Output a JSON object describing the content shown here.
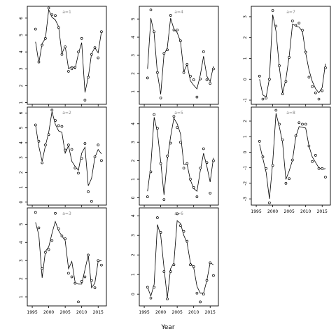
{
  "chart_data": {
    "type": "scatter",
    "xlabel": "Year",
    "xlim": [
      1993.5,
      2017.5
    ],
    "xticks": [
      1995,
      2000,
      2005,
      2010,
      2015
    ],
    "panels": [
      {
        "title": "a=1",
        "ylim": [
          0.9,
          6.7
        ],
        "yticks": [
          1,
          2,
          3,
          4,
          5,
          6
        ],
        "x": [
          1996,
          1997,
          1998,
          1999,
          2000,
          2001,
          2002,
          2003,
          2004,
          2005,
          2006,
          2007,
          2008,
          2009,
          2010,
          2011,
          2012,
          2013,
          2014,
          2015,
          2016
        ],
        "points": [
          5.35,
          3.4,
          4.4,
          4.8,
          6.6,
          6.2,
          6.15,
          5.45,
          3.85,
          4.3,
          2.85,
          3.0,
          3.1,
          4.0,
          4.8,
          1.15,
          2.5,
          3.85,
          4.25,
          3.65,
          5.2
        ],
        "fit": [
          4.6,
          3.35,
          4.5,
          4.8,
          6.5,
          6.05,
          5.9,
          5.5,
          3.9,
          4.35,
          3.0,
          3.15,
          3.0,
          3.9,
          4.55,
          1.6,
          2.5,
          3.9,
          4.25,
          3.95,
          5.2
        ]
      },
      {
        "title": "a=2",
        "ylim": [
          -0.2,
          6.4
        ],
        "yticks": [
          0,
          1,
          2,
          3,
          4,
          5,
          6
        ],
        "x": [
          1996,
          1997,
          1998,
          1999,
          2000,
          2001,
          2002,
          2003,
          2004,
          2005,
          2006,
          2007,
          2008,
          2009,
          2010,
          2011,
          2012,
          2013,
          2014,
          2015,
          2016
        ],
        "points": [
          5.2,
          4.1,
          2.65,
          3.85,
          4.55,
          6.2,
          5.5,
          5.15,
          5.1,
          3.5,
          3.85,
          3.55,
          2.3,
          1.95,
          2.95,
          3.95,
          0.7,
          0.05,
          3.05,
          3.85,
          2.8
        ],
        "fit": [
          5.2,
          3.75,
          2.75,
          3.8,
          4.7,
          6.1,
          5.25,
          4.8,
          4.7,
          3.3,
          3.8,
          2.75,
          2.4,
          2.15,
          3.3,
          3.7,
          1.1,
          1.6,
          3.0,
          3.55,
          3.25
        ]
      },
      {
        "title": "a=3",
        "ylim": [
          0.5,
          5.9
        ],
        "yticks": [
          1,
          2,
          3,
          4,
          5
        ],
        "x": [
          1996,
          1997,
          1998,
          1999,
          2000,
          2001,
          2002,
          2003,
          2004,
          2005,
          2006,
          2007,
          2008,
          2009,
          2010,
          2011,
          2012,
          2013,
          2014,
          2015,
          2016
        ],
        "points": [
          5.65,
          4.8,
          2.55,
          3.45,
          3.6,
          4.1,
          5.6,
          4.75,
          4.35,
          4.2,
          2.3,
          2.1,
          1.75,
          0.72,
          1.85,
          2.1,
          3.3,
          1.9,
          1.5,
          3.0,
          2.75
        ],
        "fit": [
          5.1,
          4.4,
          2.05,
          3.5,
          3.75,
          4.5,
          5.15,
          4.65,
          4.35,
          4.1,
          2.55,
          2.95,
          1.8,
          1.7,
          1.7,
          2.5,
          3.3,
          1.5,
          1.75,
          2.95,
          3.0
        ]
      },
      {
        "title": "a=4",
        "ylim": [
          0.3,
          5.7
        ],
        "yticks": [
          1,
          2,
          3,
          4,
          5
        ],
        "x": [
          1996,
          1997,
          1998,
          1999,
          2000,
          2001,
          2002,
          2003,
          2004,
          2005,
          2006,
          2007,
          2008,
          2009,
          2010,
          2011,
          2012,
          2013,
          2014,
          2015,
          2016
        ],
        "points": [
          1.75,
          5.5,
          4.3,
          2.05,
          0.65,
          3.1,
          3.3,
          5.2,
          4.4,
          4.4,
          3.8,
          2.05,
          2.5,
          1.85,
          1.65,
          0.7,
          1.7,
          3.2,
          1.65,
          1.45,
          2.25
        ],
        "fit": [
          2.25,
          5.05,
          4.2,
          2.0,
          0.85,
          3.05,
          3.4,
          5.05,
          4.45,
          4.25,
          3.75,
          2.1,
          2.5,
          1.6,
          1.35,
          1.15,
          1.9,
          2.95,
          1.85,
          1.55,
          2.4
        ]
      },
      {
        "title": "a=5",
        "ylim": [
          -0.4,
          4.9
        ],
        "yticks": [
          0,
          1,
          2,
          3,
          4
        ],
        "x": [
          1996,
          1997,
          1998,
          1999,
          2000,
          2001,
          2002,
          2003,
          2004,
          2005,
          2006,
          2007,
          2008,
          2009,
          2010,
          2011,
          2012,
          2013,
          2014,
          2015,
          2016
        ],
        "points": [
          0.05,
          1.4,
          4.5,
          3.75,
          1.85,
          -0.1,
          2.25,
          2.95,
          4.4,
          3.8,
          3.0,
          1.6,
          1.85,
          1.0,
          0.55,
          0.05,
          1.6,
          2.65,
          1.9,
          0.25,
          2.0
        ],
        "fit": [
          0.35,
          1.75,
          4.35,
          3.55,
          1.95,
          0.15,
          2.05,
          3.3,
          4.3,
          4.0,
          3.45,
          1.8,
          1.8,
          0.95,
          0.5,
          0.35,
          1.45,
          2.4,
          1.7,
          0.85,
          2.15
        ]
      },
      {
        "title": "a=6",
        "ylim": [
          -0.6,
          4.4
        ],
        "yticks": [
          0,
          1,
          2,
          3,
          4
        ],
        "x": [
          1996,
          1997,
          1998,
          1999,
          2000,
          2001,
          2002,
          2003,
          2004,
          2005,
          2006,
          2007,
          2008,
          2009,
          2010,
          2011,
          2012,
          2013,
          2014,
          2015,
          2016
        ],
        "points": [
          0.35,
          -0.2,
          0.35,
          3.9,
          3.15,
          1.15,
          -0.25,
          1.15,
          1.5,
          4.1,
          3.5,
          3.2,
          2.7,
          1.5,
          1.4,
          0.05,
          -0.4,
          0.0,
          0.7,
          1.6,
          0.95
        ],
        "fit": [
          0.35,
          -0.1,
          0.5,
          3.55,
          3.0,
          1.35,
          -0.2,
          1.3,
          1.6,
          3.75,
          3.6,
          3.0,
          2.6,
          1.6,
          1.35,
          0.4,
          0.05,
          0.05,
          0.7,
          1.6,
          1.5
        ]
      },
      {
        "title": "a=7",
        "ylim": [
          -1.2,
          3.5
        ],
        "yticks": [
          -1,
          0,
          1,
          2,
          3
        ],
        "x": [
          1996,
          1997,
          1998,
          1999,
          2000,
          2001,
          2002,
          2003,
          2004,
          2005,
          2006,
          2007,
          2008,
          2009,
          2010,
          2011,
          2012,
          2013,
          2014,
          2015,
          2016
        ],
        "points": [
          0.15,
          -0.95,
          -0.9,
          0.0,
          3.3,
          2.55,
          0.65,
          -0.7,
          -0.1,
          1.05,
          2.8,
          2.6,
          2.7,
          2.35,
          1.3,
          0.1,
          -0.35,
          -0.65,
          -0.95,
          -0.55,
          0.55
        ],
        "fit": [
          0.0,
          -0.75,
          -0.85,
          0.05,
          3.1,
          2.3,
          0.6,
          -0.65,
          0.0,
          1.1,
          2.65,
          2.55,
          2.5,
          2.3,
          1.25,
          0.45,
          -0.1,
          -0.45,
          -0.65,
          -0.4,
          0.75
        ]
      },
      {
        "title": "a=8",
        "ylim": [
          -3.4,
          2.9
        ],
        "yticks": [
          -3,
          -2,
          -1,
          0,
          1,
          2
        ],
        "x": [
          1996,
          1997,
          1998,
          1999,
          2000,
          2001,
          2002,
          2003,
          2004,
          2005,
          2006,
          2007,
          2008,
          2009,
          2010,
          2011,
          2012,
          2013,
          2014,
          2015,
          2016
        ],
        "points": [
          0.7,
          -0.3,
          -1.05,
          -3.25,
          -0.85,
          2.7,
          1.8,
          0.8,
          -2.0,
          -1.7,
          -0.5,
          1.05,
          1.9,
          1.8,
          1.8,
          0.4,
          -0.6,
          -0.2,
          -1.05,
          -1.05,
          -1.6
        ],
        "fit": [
          0.5,
          -0.4,
          -1.3,
          -3.0,
          -0.65,
          2.5,
          1.65,
          0.6,
          -1.75,
          -1.2,
          -0.5,
          1.0,
          1.65,
          1.6,
          1.55,
          0.4,
          -0.3,
          -0.65,
          -1.0,
          -1.1,
          -1.05
        ]
      }
    ]
  }
}
